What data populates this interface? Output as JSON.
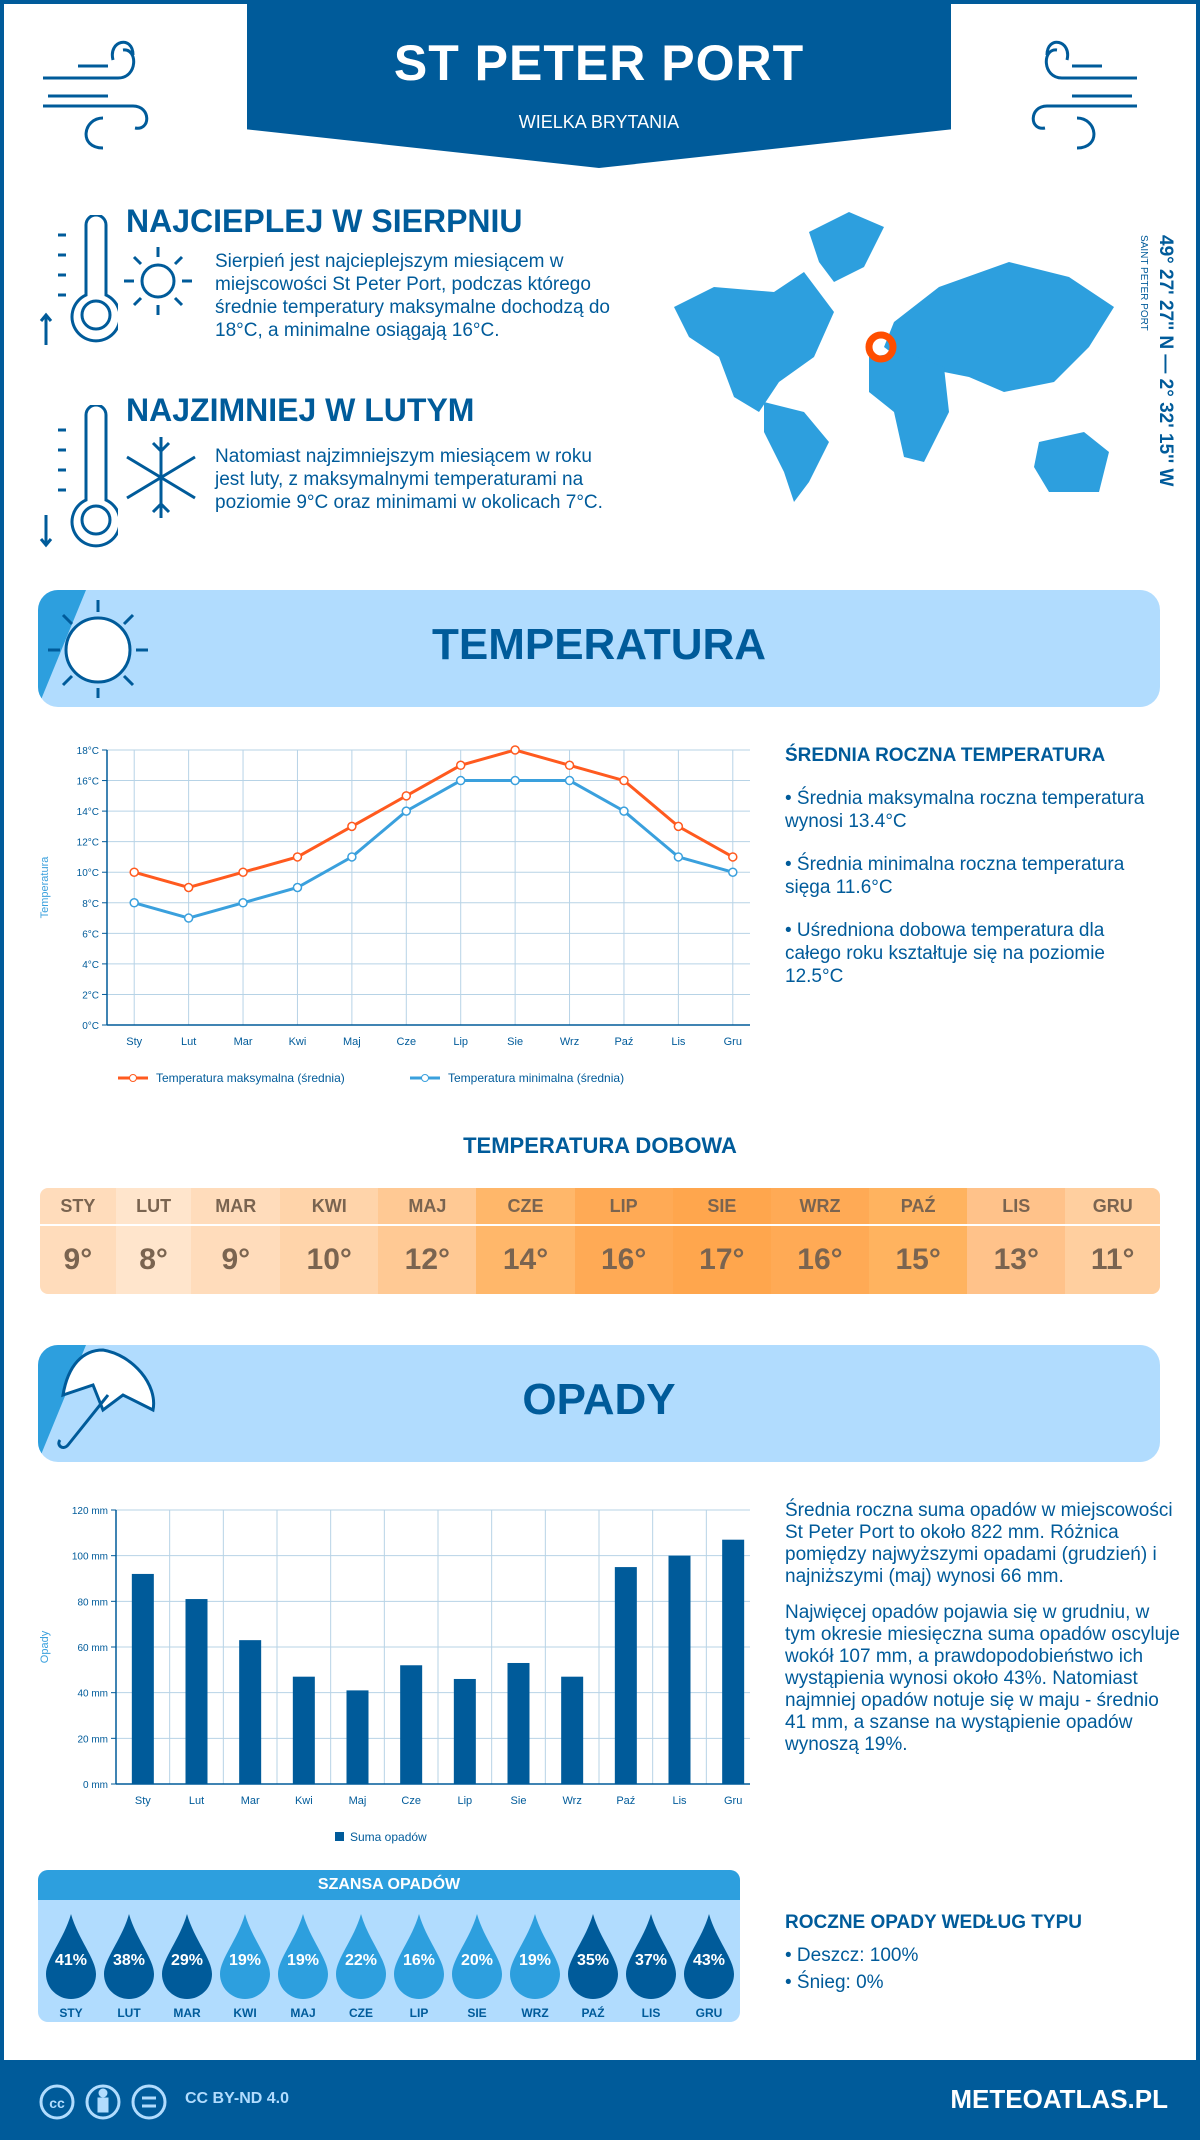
{
  "header": {
    "title": "ST PETER PORT",
    "subtitle": "WIELKA BRYTANIA"
  },
  "warmest": {
    "heading": "NAJCIEPLEJ W SIERPNIU",
    "text": "Sierpień jest najcieplejszym miesiącem w miejscowości St Peter Port, podczas którego średnie temperatury maksymalne dochodzą do 18°C, a minimalne osiągają 16°C."
  },
  "coldest": {
    "heading": "NAJZIMNIEJ W LUTYM",
    "text": "Natomiast najzimniejszym miesiącem w roku jest luty, z maksymalnymi temperaturami na poziomie 9°C oraz minimami w okolicach 7°C."
  },
  "map": {
    "coords": "49° 27' 27'' N — 2° 32' 15'' W",
    "place": "SAINT PETER PORT",
    "marker_color": "#ff4e00"
  },
  "temperature_section": {
    "title": "TEMPERATURA",
    "summary_heading": "ŚREDNIA ROCZNA TEMPERATURA",
    "bullets": [
      "• Średnia maksymalna roczna temperatura wynosi 13.4°C",
      "• Średnia minimalna roczna temperatura sięga 11.6°C",
      "• Uśredniona dobowa temperatura dla całego roku kształtuje się na poziomie 12.5°C"
    ],
    "daily_heading": "TEMPERATURA DOBOWA",
    "daily": [
      {
        "m": "STY",
        "v": "9°",
        "c": "#ffdcbb"
      },
      {
        "m": "LUT",
        "v": "8°",
        "c": "#ffe5cc"
      },
      {
        "m": "MAR",
        "v": "9°",
        "c": "#ffdcbb"
      },
      {
        "m": "KWI",
        "v": "10°",
        "c": "#ffd4aa"
      },
      {
        "m": "MAJ",
        "v": "12°",
        "c": "#ffc994"
      },
      {
        "m": "CZE",
        "v": "14°",
        "c": "#ffb76a"
      },
      {
        "m": "LIP",
        "v": "16°",
        "c": "#ffaa55"
      },
      {
        "m": "SIE",
        "v": "17°",
        "c": "#ffa64d"
      },
      {
        "m": "WRZ",
        "v": "16°",
        "c": "#ffaa55"
      },
      {
        "m": "PAŹ",
        "v": "15°",
        "c": "#ffb35f"
      },
      {
        "m": "LIS",
        "v": "13°",
        "c": "#ffc28a"
      },
      {
        "m": "GRU",
        "v": "11°",
        "c": "#ffcf9f"
      }
    ]
  },
  "chart_data": [
    {
      "type": "line",
      "ylabel": "Temperatura",
      "ylim": [
        0,
        18
      ],
      "yticks": [
        "0°C",
        "2°C",
        "4°C",
        "6°C",
        "8°C",
        "10°C",
        "12°C",
        "14°C",
        "16°C",
        "18°C"
      ],
      "grid": true,
      "legend": "bottom",
      "categories": [
        "Sty",
        "Lut",
        "Mar",
        "Kwi",
        "Maj",
        "Cze",
        "Lip",
        "Sie",
        "Wrz",
        "Paź",
        "Lis",
        "Gru"
      ],
      "series": [
        {
          "name": "Temperatura maksymalna (średnia)",
          "color": "#ff5a1f",
          "values": [
            10,
            9,
            10,
            11,
            13,
            15,
            17,
            18,
            17,
            16,
            13,
            11
          ]
        },
        {
          "name": "Temperatura minimalna (średnia)",
          "color": "#3aa0dd",
          "values": [
            8,
            7,
            8,
            9,
            11,
            14,
            16,
            16,
            16,
            14,
            11,
            10
          ]
        }
      ]
    },
    {
      "type": "bar",
      "ylabel": "Opady",
      "ylim": [
        0,
        120
      ],
      "yticks": [
        "0 mm",
        "20 mm",
        "40 mm",
        "60 mm",
        "80 mm",
        "100 mm",
        "120 mm"
      ],
      "grid": true,
      "legend": "bottom",
      "categories": [
        "Sty",
        "Lut",
        "Mar",
        "Kwi",
        "Maj",
        "Cze",
        "Lip",
        "Sie",
        "Wrz",
        "Paź",
        "Lis",
        "Gru"
      ],
      "series": [
        {
          "name": "Suma opadów",
          "color": "#005b9a",
          "values": [
            92,
            81,
            63,
            47,
            41,
            52,
            46,
            53,
            47,
            95,
            100,
            107
          ]
        }
      ]
    }
  ],
  "precip_section": {
    "title": "OPADY",
    "text1": "Średnia roczna suma opadów w miejscowości St Peter Port to około 822 mm. Różnica pomiędzy najwyższymi opadami (grudzień) i najniższymi (maj) wynosi 66 mm.",
    "text2": "Najwięcej opadów pojawia się w grudniu, w tym okresie miesięczna suma opadów oscyluje wokół 107 mm, a prawdopodobieństwo ich wystąpienia wynosi około 43%. Natomiast najmniej opadów notuje się w maju - średnio 41 mm, a szanse na wystąpienie opadów wynoszą 19%.",
    "chance_heading": "SZANSA OPADÓW",
    "chance": [
      {
        "m": "STY",
        "v": "41%"
      },
      {
        "m": "LUT",
        "v": "38%"
      },
      {
        "m": "MAR",
        "v": "29%"
      },
      {
        "m": "KWI",
        "v": "19%"
      },
      {
        "m": "MAJ",
        "v": "19%"
      },
      {
        "m": "CZE",
        "v": "22%"
      },
      {
        "m": "LIP",
        "v": "16%"
      },
      {
        "m": "SIE",
        "v": "20%"
      },
      {
        "m": "WRZ",
        "v": "19%"
      },
      {
        "m": "PAŹ",
        "v": "35%"
      },
      {
        "m": "LIS",
        "v": "37%"
      },
      {
        "m": "GRU",
        "v": "43%"
      }
    ],
    "type_heading": "ROCZNE OPADY WEDŁUG TYPU",
    "types": [
      "• Deszcz: 100%",
      "• Śnieg: 0%"
    ]
  },
  "footer": {
    "license": "CC BY-ND 4.0",
    "brand": "METEOATLAS.PL"
  },
  "colors": {
    "primary": "#005b9a",
    "light": "#b1dcfe",
    "accent": "#2d9fde",
    "orange": "#ff5a1f"
  }
}
